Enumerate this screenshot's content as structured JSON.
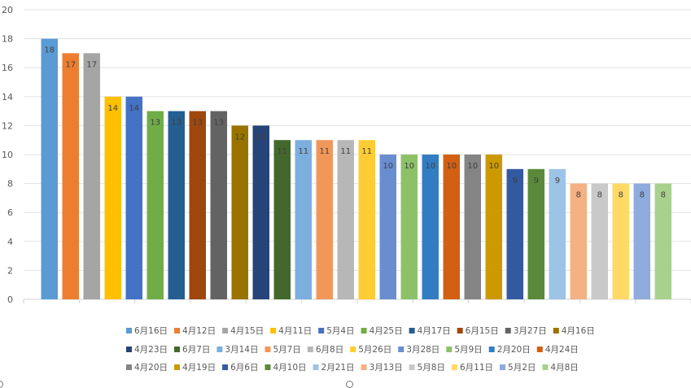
{
  "chart_data": {
    "type": "bar",
    "ylim": [
      0,
      20
    ],
    "yticks": [
      "0",
      "2",
      "4",
      "6",
      "8",
      "10",
      "12",
      "14",
      "16",
      "18",
      "20"
    ],
    "grid": true,
    "legend_position": "bottom",
    "categories": [
      "6月16日",
      "4月12日",
      "4月15日",
      "4月11日",
      "5月4日",
      "4月25日",
      "4月17日",
      "6月15日",
      "3月27日",
      "4月16日",
      "4月23日",
      "6月7日",
      "3月14日",
      "5月7日",
      "6月8日",
      "5月26日",
      "3月28日",
      "5月9日",
      "2月20日",
      "4月24日",
      "4月20日",
      "4月19日",
      "6月6日",
      "4月10日",
      "2月21日",
      "3月13日",
      "5月8日",
      "6月11日",
      "5月2日",
      "4月8日"
    ],
    "values": [
      18,
      17,
      17,
      14,
      14,
      13,
      13,
      13,
      13,
      12,
      12,
      11,
      11,
      11,
      11,
      11,
      10,
      10,
      10,
      10,
      10,
      10,
      9,
      9,
      9,
      8,
      8,
      8,
      8,
      8
    ],
    "colors": [
      "#5b9bd5",
      "#ed7d31",
      "#a5a5a5",
      "#ffc000",
      "#4472c4",
      "#70ad47",
      "#255e91",
      "#9e480e",
      "#636363",
      "#997300",
      "#264478",
      "#43682b",
      "#7cafdd",
      "#f1975a",
      "#b7b7b7",
      "#ffcd33",
      "#698ed0",
      "#8cc168",
      "#327dc2",
      "#d26012",
      "#848484",
      "#cc9a00",
      "#335aa1",
      "#5a8a39",
      "#9dc3e6",
      "#f4b183",
      "#c9c9c9",
      "#ffd966",
      "#8faadc",
      "#a9d18e"
    ]
  }
}
